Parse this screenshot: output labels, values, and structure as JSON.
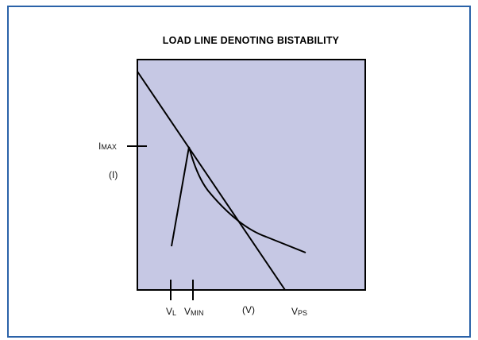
{
  "title": "LOAD LINE DENOTING BISTABILITY",
  "labels": {
    "current_max": {
      "main": "I",
      "sub": "MAX"
    },
    "current_axis": "(I)",
    "voltage_l": {
      "main": "V",
      "sub": "L"
    },
    "voltage_min": {
      "main": "V",
      "sub": "MIN"
    },
    "voltage_axis": "(V)",
    "voltage_ps": {
      "main": "V",
      "sub": "PS"
    }
  }
}
